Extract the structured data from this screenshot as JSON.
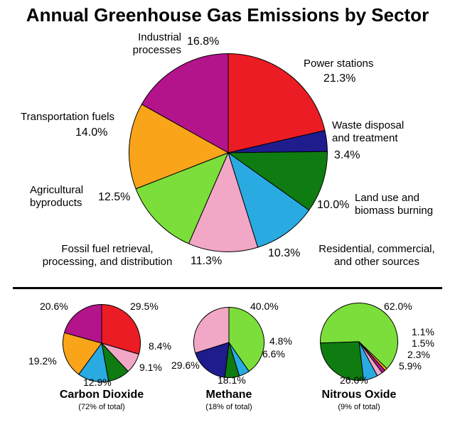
{
  "title": "Annual Greenhouse Gas Emissions by Sector",
  "chart_data": [
    {
      "type": "pie",
      "name": "main",
      "title": "Annual Greenhouse Gas Emissions by Sector",
      "start_angle_deg": 0,
      "legend_position": "around-slices",
      "slices": [
        {
          "label": "Power stations",
          "value": 21.3,
          "pct_label": "21.3%",
          "display_name": "Power stations",
          "color": "#EC1C24"
        },
        {
          "label": "Waste disposal and treatment",
          "value": 3.4,
          "pct_label": "3.4%",
          "display_name": "Waste disposal\nand treatment",
          "color": "#1F1C8E"
        },
        {
          "label": "Land use and biomass burning",
          "value": 10.0,
          "pct_label": "10.0%",
          "display_name": "Land use and\nbiomass burning",
          "color": "#0F7C11"
        },
        {
          "label": "Residential, commercial, and other sources",
          "value": 10.3,
          "pct_label": "10.3%",
          "display_name": "Residential, commercial,\nand other sources",
          "color": "#29ABE2"
        },
        {
          "label": "Fossil fuel retrieval, processing, and distribution",
          "value": 11.3,
          "pct_label": "11.3%",
          "display_name": "Fossil fuel retrieval,\nprocessing, and distribution",
          "color": "#F2A7C6"
        },
        {
          "label": "Agricultural byproducts",
          "value": 12.5,
          "pct_label": "12.5%",
          "display_name": "Agricultural\nbyproducts",
          "color": "#7CDE3A"
        },
        {
          "label": "Transportation fuels",
          "value": 14.0,
          "pct_label": "14.0%",
          "display_name": "Transportation fuels",
          "color": "#FAA41A"
        },
        {
          "label": "Industrial processes",
          "value": 16.8,
          "pct_label": "16.8%",
          "display_name": "Industrial\nprocesses",
          "color": "#B3148C"
        }
      ]
    },
    {
      "type": "pie",
      "name": "carbon-dioxide",
      "title": "Carbon Dioxide",
      "subtitle": "(72% of total)",
      "start_angle_deg": 0,
      "slices": [
        {
          "label": "Power stations",
          "value": 29.5,
          "pct_label": "29.5%",
          "color": "#EC1C24"
        },
        {
          "label": "Fossil fuel retrieval, processing, and distribution",
          "value": 8.4,
          "pct_label": "8.4%",
          "color": "#F2A7C6"
        },
        {
          "label": "Land use and biomass burning",
          "value": 9.1,
          "pct_label": "9.1%",
          "color": "#0F7C11"
        },
        {
          "label": "Residential, commercial, and other sources",
          "value": 12.9,
          "pct_label": "12.9%",
          "color": "#29ABE2"
        },
        {
          "label": "Transportation fuels",
          "value": 19.2,
          "pct_label": "19.2%",
          "color": "#FAA41A"
        },
        {
          "label": "Industrial processes",
          "value": 20.6,
          "pct_label": "20.6%",
          "color": "#B3148C"
        }
      ]
    },
    {
      "type": "pie",
      "name": "methane",
      "title": "Methane",
      "subtitle": "(18% of total)",
      "start_angle_deg": 0,
      "slices": [
        {
          "label": "Agricultural byproducts",
          "value": 40.0,
          "pct_label": "40.0%",
          "color": "#7CDE3A"
        },
        {
          "label": "Residential, commercial, and other sources",
          "value": 4.8,
          "pct_label": "4.8%",
          "color": "#29ABE2"
        },
        {
          "label": "Land use and biomass burning",
          "value": 6.6,
          "pct_label": "6.6%",
          "color": "#0F7C11"
        },
        {
          "label": "Waste disposal and treatment",
          "value": 18.1,
          "pct_label": "18.1%",
          "color": "#1F1C8E"
        },
        {
          "label": "Fossil fuel retrieval, processing, and distribution",
          "value": 29.6,
          "pct_label": "29.6%",
          "color": "#F2A7C6"
        }
      ]
    },
    {
      "type": "pie",
      "name": "nitrous-oxide",
      "title": "Nitrous Oxide",
      "subtitle": "(9% of total)",
      "start_angle_deg": 268,
      "slices": [
        {
          "label": "Agricultural byproducts",
          "value": 62.0,
          "pct_label": "62.0%",
          "color": "#7CDE3A"
        },
        {
          "label": "Transportation fuels",
          "value": 1.1,
          "pct_label": "1.1%",
          "color": "#FAA41A"
        },
        {
          "label": "Industrial processes",
          "value": 1.5,
          "pct_label": "1.5%",
          "color": "#B3148C"
        },
        {
          "label": "Fossil fuel retrieval, processing, and distribution",
          "value": 2.3,
          "pct_label": "2.3%",
          "color": "#F2A7C6"
        },
        {
          "label": "Residential, commercial, and other sources",
          "value": 5.9,
          "pct_label": "5.9%",
          "color": "#29ABE2"
        },
        {
          "label": "Land use and biomass burning",
          "value": 26.0,
          "pct_label": "26.0%",
          "color": "#0F7C11"
        }
      ]
    }
  ]
}
